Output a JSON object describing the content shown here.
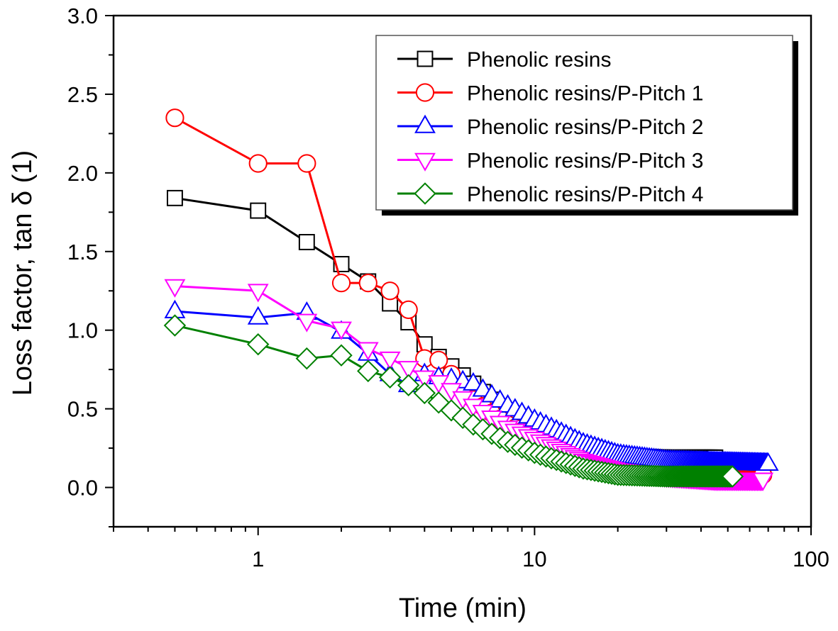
{
  "chart_data": {
    "type": "line",
    "title": "",
    "xlabel": "Time (min)",
    "ylabel": "Loss factor, tan δ (1)",
    "xscale": "log",
    "xlim": [
      0.3,
      100
    ],
    "ylim": [
      -0.25,
      3.0
    ],
    "x_ticks": [
      1,
      10,
      100
    ],
    "x_tick_labels": [
      "1",
      "10",
      "100"
    ],
    "y_ticks": [
      0.0,
      0.5,
      1.0,
      1.5,
      2.0,
      2.5,
      3.0
    ],
    "y_tick_labels": [
      "0.0",
      "0.5",
      "1.0",
      "1.5",
      "2.0",
      "2.5",
      "3.0"
    ],
    "grid": false,
    "legend_position": "top-right",
    "sampling_step_min": 0.5,
    "series": [
      {
        "name": "Phenolic resins",
        "color": "#000000",
        "marker": "square",
        "x_end": 45,
        "anchors": [
          [
            0.5,
            1.84
          ],
          [
            1,
            1.76
          ],
          [
            1.5,
            1.56
          ],
          [
            2,
            1.42
          ],
          [
            2.5,
            1.31
          ],
          [
            3,
            1.17
          ],
          [
            3.5,
            1.05
          ],
          [
            4,
            0.91
          ],
          [
            4.5,
            0.83
          ],
          [
            5,
            0.77
          ],
          [
            6,
            0.66
          ],
          [
            8,
            0.47
          ],
          [
            10,
            0.34
          ],
          [
            15,
            0.24
          ],
          [
            20,
            0.2
          ],
          [
            30,
            0.19
          ],
          [
            45,
            0.19
          ]
        ]
      },
      {
        "name": "Phenolic resins/P-Pitch 1",
        "color": "#ff0000",
        "marker": "circle",
        "x_end": 67,
        "anchors": [
          [
            0.5,
            2.35
          ],
          [
            1,
            2.06
          ],
          [
            1.5,
            2.06
          ],
          [
            2,
            1.3
          ],
          [
            2.5,
            1.3
          ],
          [
            3,
            1.25
          ],
          [
            3.5,
            1.13
          ],
          [
            4,
            0.82
          ],
          [
            4.5,
            0.81
          ],
          [
            5,
            0.72
          ],
          [
            6,
            0.56
          ],
          [
            8,
            0.4
          ],
          [
            10,
            0.32
          ],
          [
            15,
            0.2
          ],
          [
            20,
            0.14
          ],
          [
            30,
            0.1
          ],
          [
            45,
            0.08
          ],
          [
            67,
            0.08
          ]
        ]
      },
      {
        "name": "Phenolic resins/P-Pitch 2",
        "color": "#0000ff",
        "marker": "triangle-up",
        "x_end": 70,
        "anchors": [
          [
            0.5,
            1.12
          ],
          [
            1,
            1.08
          ],
          [
            1.5,
            1.11
          ],
          [
            2,
            0.99
          ],
          [
            2.5,
            0.85
          ],
          [
            3,
            0.72
          ],
          [
            3.5,
            0.65
          ],
          [
            4,
            0.72
          ],
          [
            4.5,
            0.7
          ],
          [
            5,
            0.69
          ],
          [
            6,
            0.66
          ],
          [
            8,
            0.52
          ],
          [
            10,
            0.43
          ],
          [
            15,
            0.28
          ],
          [
            20,
            0.21
          ],
          [
            30,
            0.17
          ],
          [
            45,
            0.16
          ],
          [
            70,
            0.15
          ]
        ]
      },
      {
        "name": "Phenolic resins/P-Pitch 3",
        "color": "#ff00ff",
        "marker": "triangle-down",
        "x_end": 67,
        "anchors": [
          [
            0.5,
            1.28
          ],
          [
            1,
            1.25
          ],
          [
            1.5,
            1.06
          ],
          [
            2,
            1.01
          ],
          [
            2.5,
            0.88
          ],
          [
            3,
            0.82
          ],
          [
            3.5,
            0.76
          ],
          [
            4,
            0.7
          ],
          [
            4.5,
            0.67
          ],
          [
            5,
            0.62
          ],
          [
            6,
            0.52
          ],
          [
            8,
            0.38
          ],
          [
            10,
            0.31
          ],
          [
            15,
            0.17
          ],
          [
            20,
            0.11
          ],
          [
            30,
            0.07
          ],
          [
            45,
            0.05
          ],
          [
            67,
            0.05
          ]
        ]
      },
      {
        "name": "Phenolic resins/P-Pitch 4",
        "color": "#008000",
        "marker": "diamond",
        "x_end": 52,
        "anchors": [
          [
            0.5,
            1.03
          ],
          [
            1,
            0.91
          ],
          [
            1.5,
            0.82
          ],
          [
            2,
            0.84
          ],
          [
            2.5,
            0.74
          ],
          [
            3,
            0.7
          ],
          [
            3.5,
            0.65
          ],
          [
            4,
            0.6
          ],
          [
            4.5,
            0.54
          ],
          [
            5,
            0.49
          ],
          [
            6,
            0.4
          ],
          [
            8,
            0.29
          ],
          [
            10,
            0.22
          ],
          [
            15,
            0.12
          ],
          [
            20,
            0.08
          ],
          [
            30,
            0.07
          ],
          [
            52,
            0.07
          ]
        ]
      }
    ]
  }
}
